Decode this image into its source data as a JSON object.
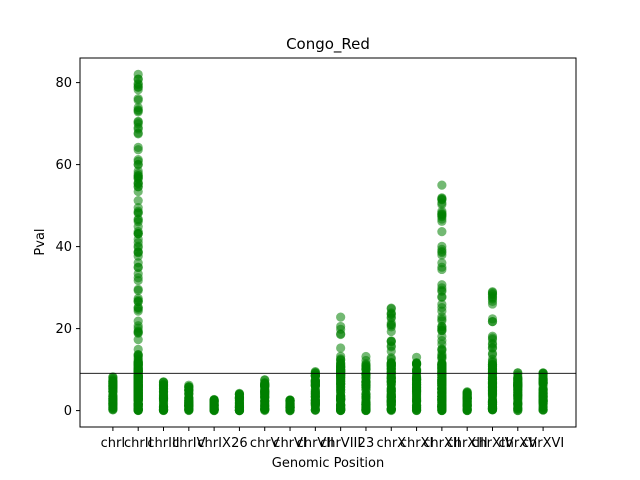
{
  "chart_data": {
    "type": "scatter",
    "title": "Congo_Red",
    "xlabel": "Genomic Position",
    "ylabel": "Pval",
    "ylim": [
      -4,
      86
    ],
    "yticks": [
      0,
      20,
      40,
      60,
      80
    ],
    "categories": [
      "chrI",
      "chrII",
      "chrIII",
      "chrIV",
      "chrIX",
      "26",
      "chrV",
      "chrVI",
      "chrVII",
      "chrVIII",
      "23",
      "chrX",
      "chrXI",
      "chrXII",
      "chrXIII",
      "chrXIV",
      "chrXV",
      "chrXVI"
    ],
    "threshold": 9.1,
    "point_color": "#008000",
    "line_color": "#000000",
    "grid": false,
    "series": [
      {
        "max_values": [
          8.2,
          82.0,
          7.0,
          6.2,
          2.7,
          4.2,
          7.5,
          2.6,
          9.5,
          22.8,
          13.2,
          25.0,
          13.0,
          55.0,
          4.6,
          29.0,
          9.2,
          9.2
        ]
      }
    ]
  }
}
